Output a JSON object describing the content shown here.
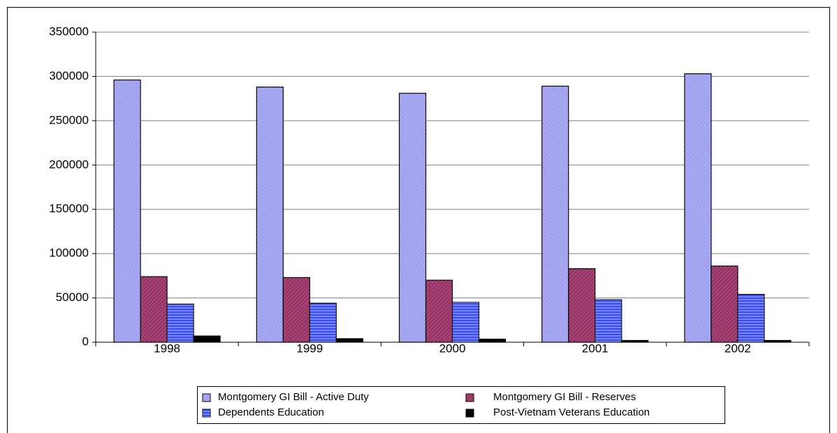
{
  "chart_data": {
    "type": "bar",
    "categories": [
      "1998",
      "1999",
      "2000",
      "2001",
      "2002"
    ],
    "series": [
      {
        "name": "Montgomery GI Bill - Active Duty",
        "color": "#a0a0f0",
        "values": [
          296000,
          288000,
          281000,
          289000,
          303000
        ]
      },
      {
        "name": "Montgomery GI Bill - Reserves",
        "color": "#993366",
        "values": [
          74000,
          73000,
          70000,
          83000,
          86000
        ]
      },
      {
        "name": "Dependents Education",
        "color": "#3a4ef0",
        "values": [
          43000,
          44000,
          45000,
          48000,
          54000
        ]
      },
      {
        "name": "Post-Vietnam Veterans Education",
        "color": "#000000",
        "values": [
          7000,
          4000,
          3500,
          2000,
          2000
        ]
      }
    ],
    "ylim": [
      0,
      350000
    ],
    "yticks": [
      0,
      50000,
      100000,
      150000,
      200000,
      250000,
      300000,
      350000
    ],
    "grid": true,
    "legend": "bottom"
  }
}
